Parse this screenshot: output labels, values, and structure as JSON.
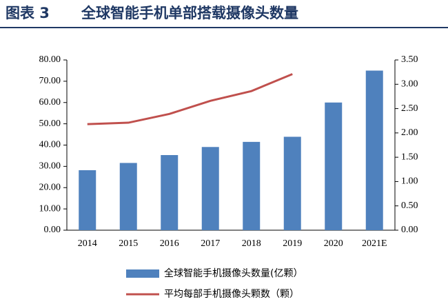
{
  "title_label": "图表 3",
  "chart_data": {
    "type": "bar-line",
    "title": "全球智能手机单部搭载摄像头数量",
    "categories": [
      "2014",
      "2015",
      "2016",
      "2017",
      "2018",
      "2019",
      "2020",
      "2021E"
    ],
    "series": [
      {
        "name": "全球智能手机摄像头数量(亿颗）",
        "type": "bar",
        "color": "#4f81bd",
        "values": [
          28.2,
          31.6,
          35.3,
          39.1,
          41.5,
          43.9,
          60,
          75
        ]
      },
      {
        "name": "平均每部手机摄像头颗数（颗）",
        "type": "line",
        "axis": "y2",
        "color": "#c0504d",
        "values": [
          2.18,
          2.21,
          2.39,
          2.66,
          2.86,
          3.21,
          null,
          null
        ]
      }
    ],
    "ylim": [
      0,
      80
    ],
    "yticks": [
      {
        "value": 0,
        "label": "0.00"
      },
      {
        "value": 10,
        "label": "10.00"
      },
      {
        "value": 20,
        "label": "20.00"
      },
      {
        "value": 30,
        "label": "30.00"
      },
      {
        "value": 40,
        "label": "40.00"
      },
      {
        "value": 50,
        "label": "50.00"
      },
      {
        "value": 60,
        "label": "60.00"
      },
      {
        "value": 70,
        "label": "70.00"
      },
      {
        "value": 80,
        "label": "80.00"
      }
    ],
    "y2lim": [
      0,
      3.5
    ],
    "y2ticks": [
      {
        "value": 0,
        "label": "0.00"
      },
      {
        "value": 0.5,
        "label": "0.50"
      },
      {
        "value": 1,
        "label": "1.00"
      },
      {
        "value": 1.5,
        "label": "1.50"
      },
      {
        "value": 2,
        "label": "2.00"
      },
      {
        "value": 2.5,
        "label": "2.50"
      },
      {
        "value": 3,
        "label": "3.00"
      },
      {
        "value": 3.5,
        "label": "3.50"
      }
    ],
    "grid": false
  }
}
